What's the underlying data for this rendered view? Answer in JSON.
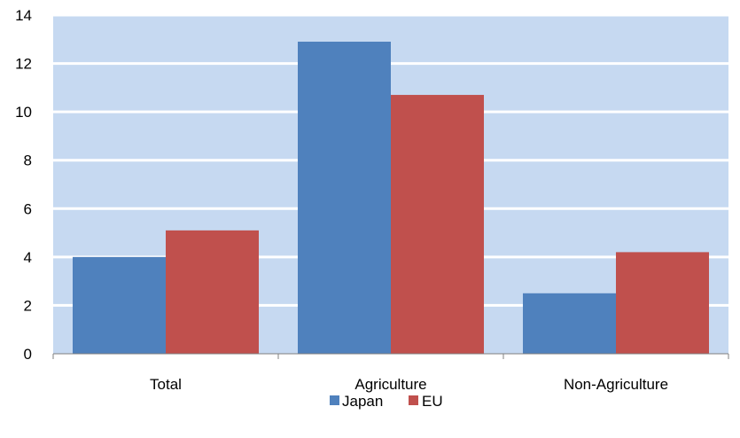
{
  "colors": {
    "plot_background": "#c6d9f1",
    "gridline": "#ffffff",
    "axis": "#808080"
  },
  "chart_data": {
    "type": "bar",
    "categories": [
      "Total",
      "Agriculture",
      "Non-Agriculture"
    ],
    "series": [
      {
        "name": "Japan",
        "values": [
          4.0,
          12.9,
          2.5
        ],
        "color": "#4f81bd"
      },
      {
        "name": "EU",
        "values": [
          5.1,
          10.7,
          4.2
        ],
        "color": "#c0504d"
      }
    ],
    "title": "",
    "xlabel": "",
    "ylabel": "",
    "ylim": [
      0,
      14
    ],
    "yticks": [
      "0",
      "2",
      "4",
      "6",
      "8",
      "10",
      "12",
      "14"
    ],
    "grid": true,
    "legend_position": "bottom"
  }
}
